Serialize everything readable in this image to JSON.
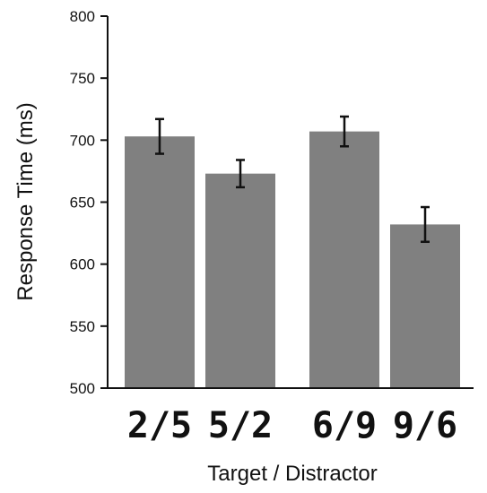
{
  "chart_data": {
    "type": "bar",
    "categories": [
      "2/5",
      "5/2",
      "6/9",
      "9/6"
    ],
    "values": [
      703,
      673,
      707,
      632
    ],
    "error": [
      14,
      11,
      12,
      14
    ],
    "xlabel": "Target / Distractor",
    "ylabel": "Response Time (ms)",
    "ylim": [
      500,
      800
    ],
    "yticks": [
      500,
      550,
      600,
      650,
      700,
      750,
      800
    ],
    "grid": false,
    "legend": "none",
    "bar_color": "#808080",
    "error_color": "#111111",
    "axis_color": "#111111"
  }
}
